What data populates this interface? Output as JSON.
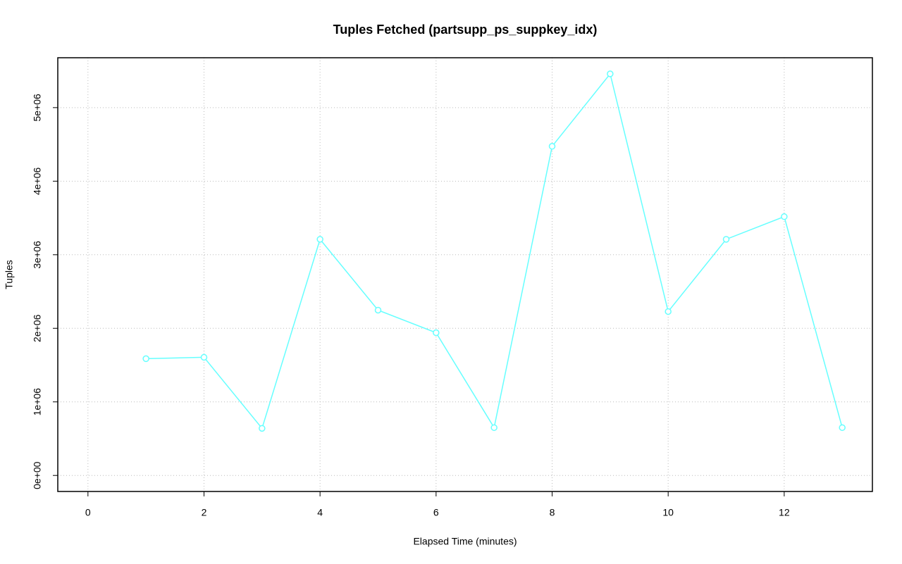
{
  "chart_data": {
    "type": "line",
    "title": "Tuples Fetched (partsupp_ps_suppkey_idx)",
    "x_label": "Elapsed Time (minutes)",
    "y_label": "Tuples",
    "x": [
      1,
      2,
      3,
      4,
      5,
      6,
      7,
      8,
      9,
      10,
      11,
      12,
      13
    ],
    "values": [
      1587000,
      1606000,
      640000,
      3210000,
      2247000,
      1940000,
      650000,
      4474000,
      5459000,
      2228000,
      3210000,
      3518000,
      650000
    ],
    "color": "#66ffff",
    "xlim": [
      -0.52,
      13.52
    ],
    "ylim": [
      -218000,
      5678000
    ],
    "xticks": [
      0,
      2,
      4,
      6,
      8,
      10,
      12
    ],
    "yticks": [
      {
        "value": 0,
        "label": "0e+00"
      },
      {
        "value": 1000000,
        "label": "1e+06"
      },
      {
        "value": 2000000,
        "label": "2e+06"
      },
      {
        "value": 3000000,
        "label": "3e+06"
      },
      {
        "value": 4000000,
        "label": "4e+06"
      },
      {
        "value": 5000000,
        "label": "5e+06"
      }
    ],
    "grid": true
  }
}
